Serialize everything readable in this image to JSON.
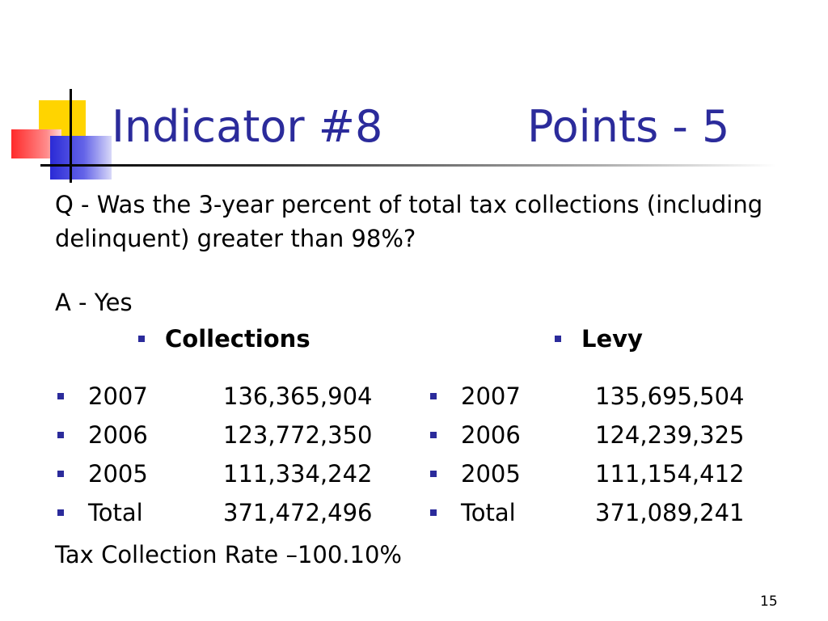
{
  "slide": {
    "title_left": "Indicator #8",
    "title_right": "Points - 5",
    "question": "Q - Was the 3-year percent of total tax collections (including delinquent) greater than 98%?",
    "answer": "A - Yes",
    "collections_header": "Collections",
    "levy_header": "Levy",
    "collections": [
      {
        "label": "2007",
        "value": "136,365,904"
      },
      {
        "label": "2006",
        "value": "123,772,350"
      },
      {
        "label": "2005",
        "value": "111,334,242"
      },
      {
        "label": "Total",
        "value": "371,472,496"
      }
    ],
    "levy": [
      {
        "label": "2007",
        "value": "135,695,504"
      },
      {
        "label": "2006",
        "value": "124,239,325"
      },
      {
        "label": "2005",
        "value": "111,154,412"
      },
      {
        "label": "Total",
        "value": "371,089,241"
      }
    ],
    "rate": "Tax Collection Rate –100.10%",
    "page_number": "15"
  },
  "colors": {
    "title": "#2b2b9b",
    "bullet": "#2b2b9b",
    "text": "#000000"
  }
}
